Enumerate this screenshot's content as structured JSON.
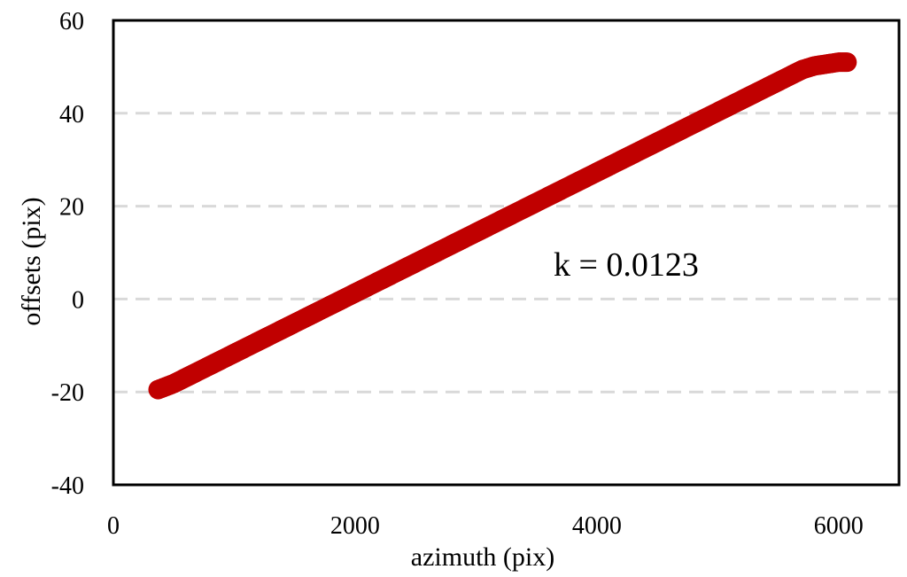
{
  "chart_data": {
    "type": "scatter",
    "title": "",
    "xlabel": "azimuth (pix)",
    "ylabel": "offsets (pix)",
    "xlim": [
      0,
      6500
    ],
    "ylim": [
      -40,
      60
    ],
    "x_ticks": [
      0,
      2000,
      4000,
      6000
    ],
    "y_ticks": [
      -40,
      -20,
      0,
      20,
      40,
      60
    ],
    "x_tick_labels": [
      "0",
      "2000",
      "4000",
      "6000"
    ],
    "y_tick_labels": [
      "-40",
      "-20",
      "0",
      "20",
      "40",
      "60"
    ],
    "grid": "horizontal dashed",
    "legend": "none",
    "annotation": "k = 0.0123",
    "marker_color": "#c00000",
    "series": [
      {
        "x": [
          370,
          500,
          600,
          700,
          800,
          900,
          1000,
          1100,
          1200,
          1300,
          1400,
          1500,
          1600,
          1700,
          1800,
          1900,
          2000,
          2100,
          2200,
          2300,
          2400,
          2500,
          2600,
          2700,
          2800,
          2900,
          3000,
          3100,
          3200,
          3300,
          3400,
          3500,
          3600,
          3700,
          3800,
          3900,
          4000,
          4100,
          4200,
          4300,
          4400,
          4500,
          4600,
          4700,
          4800,
          4900,
          5000,
          5100,
          5200,
          5300,
          5400,
          5500,
          5600,
          5700,
          5800,
          5900,
          6000,
          6070
        ],
        "y": [
          -19.5,
          -18.2,
          -16.9,
          -15.6,
          -14.3,
          -13.0,
          -11.7,
          -10.4,
          -9.1,
          -7.8,
          -6.5,
          -5.2,
          -3.9,
          -2.6,
          -1.3,
          0.0,
          1.3,
          2.6,
          3.9,
          5.2,
          6.5,
          7.8,
          9.1,
          10.4,
          11.7,
          13.0,
          14.3,
          15.6,
          16.9,
          18.2,
          19.5,
          20.8,
          22.1,
          23.4,
          24.7,
          26.0,
          27.3,
          28.6,
          29.9,
          31.2,
          32.5,
          33.8,
          35.1,
          36.4,
          37.7,
          39.0,
          40.3,
          41.6,
          42.9,
          44.2,
          45.5,
          46.8,
          48.1,
          49.4,
          50.2,
          50.6,
          51.0,
          51.0
        ]
      }
    ]
  }
}
